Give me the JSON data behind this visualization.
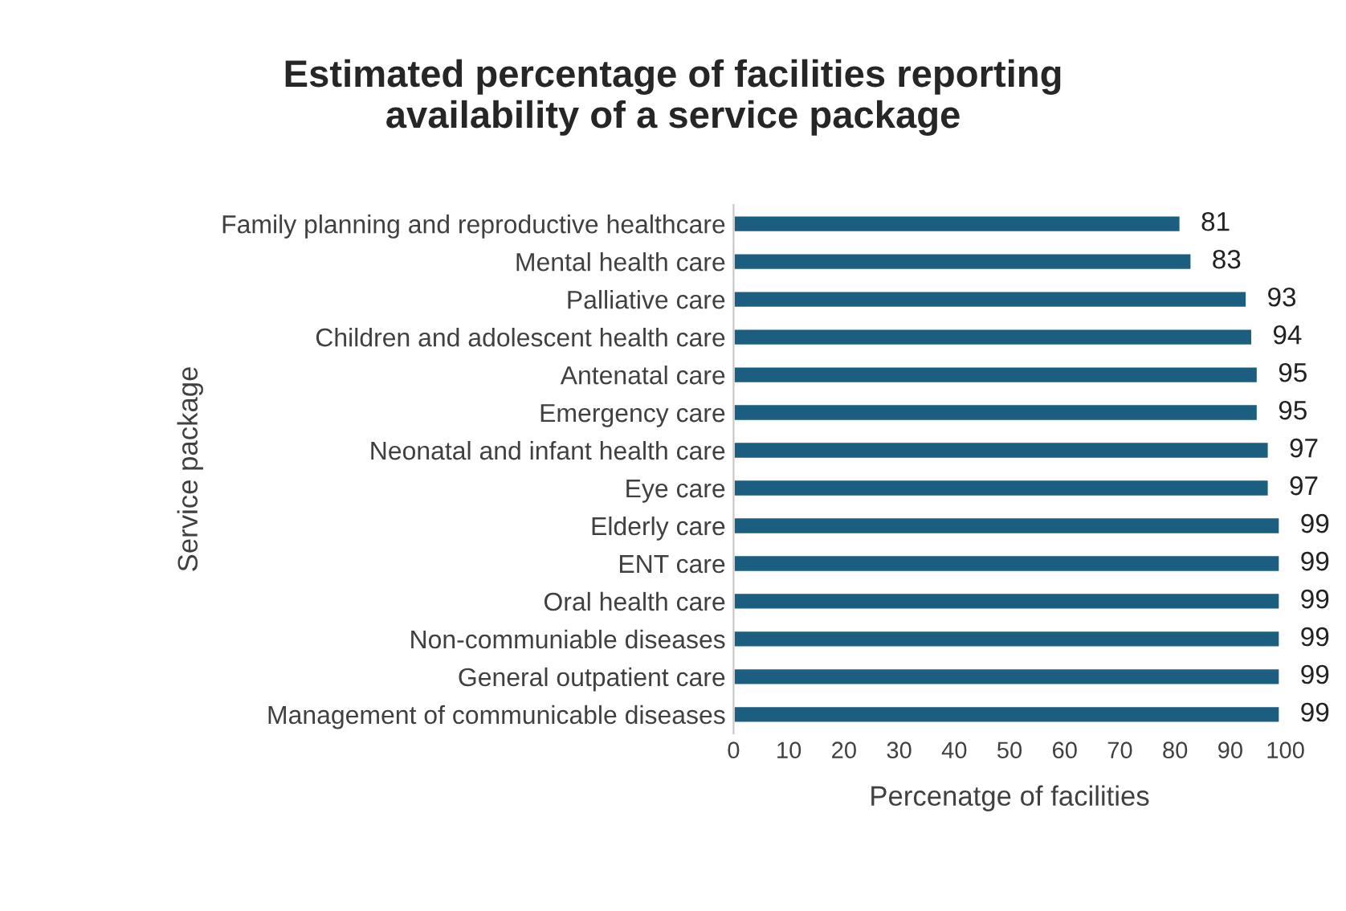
{
  "chart_data": {
    "type": "bar",
    "orientation": "horizontal",
    "title": "Estimated percentage of facilities reporting\navailability of a service package",
    "xlabel": "Percenatge of facilities",
    "ylabel": "Service package",
    "categories": [
      "Family planning and reproductive healthcare",
      "Mental health care",
      "Palliative care",
      "Children and adolescent health care",
      "Antenatal care",
      "Emergency care",
      "Neonatal and infant health care",
      "Eye care",
      "Elderly care",
      "ENT care",
      "Oral health care",
      "Non-communiable diseases",
      "General outpatient care",
      "Management of communicable diseases"
    ],
    "values": [
      81,
      83,
      93,
      94,
      95,
      95,
      97,
      97,
      99,
      99,
      99,
      99,
      99,
      99
    ],
    "color": "#1b5e80",
    "xlim": [
      0,
      100
    ],
    "xticks": [
      0,
      10,
      20,
      30,
      40,
      50,
      60,
      70,
      80,
      90,
      100
    ],
    "data_labels": true,
    "grid": false,
    "legend": false
  }
}
